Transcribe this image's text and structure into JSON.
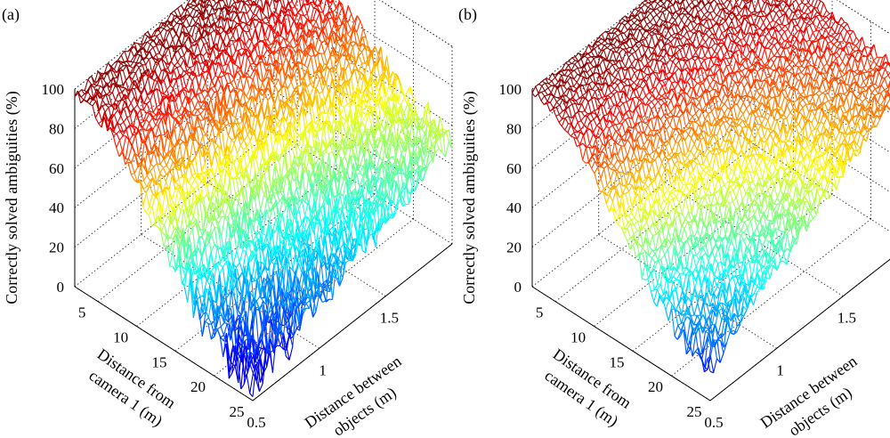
{
  "figure": {
    "panel_labels": [
      "(a)",
      "(b)"
    ]
  },
  "chart_data": [
    {
      "type": "surface",
      "panel": "(a)",
      "zlabel": "Correctly solved ambiguities (%)",
      "xlabel": "Distance from camera 1 (m)",
      "xlabel_lines": [
        "Distance from",
        "camera 1 (m)"
      ],
      "ylabel": "Distance between objects (m)",
      "ylabel_lines": [
        "Distance between",
        "objects (m)"
      ],
      "x_ticks": [
        "5",
        "10",
        "15",
        "20",
        "25"
      ],
      "y_ticks": [
        "0.5",
        "1",
        "1.5"
      ],
      "z_ticks": [
        "0",
        "20",
        "40",
        "60",
        "80",
        "100"
      ],
      "xlim": [
        2,
        25
      ],
      "ylim": [
        0.5,
        2.0
      ],
      "zlim": [
        0,
        100
      ],
      "colormap": "jet",
      "grid": true,
      "corner_values": {
        "near_camera_small_separation": 98,
        "near_camera_large_separation": 100,
        "far_camera_small_separation": 8,
        "far_camera_large_separation": 55
      },
      "noise_amplitude": 9
    },
    {
      "type": "surface",
      "panel": "(b)",
      "zlabel": "Correctly solved ambiguities (%)",
      "xlabel": "Distance from camera 1 (m)",
      "xlabel_lines": [
        "Distance from",
        "camera 1 (m)"
      ],
      "ylabel": "Distance between objects (m)",
      "ylabel_lines": [
        "Distance between",
        "objects (m)"
      ],
      "x_ticks": [
        "5",
        "10",
        "15",
        "20",
        "25"
      ],
      "y_ticks": [
        "0.5",
        "1",
        "1.5"
      ],
      "z_ticks": [
        "0",
        "20",
        "40",
        "60",
        "80",
        "100"
      ],
      "xlim": [
        2,
        25
      ],
      "ylim": [
        0.5,
        2.0
      ],
      "zlim": [
        0,
        100
      ],
      "colormap": "jet",
      "grid": true,
      "corner_values": {
        "near_camera_small_separation": 99,
        "near_camera_large_separation": 100,
        "far_camera_small_separation": 18,
        "far_camera_large_separation": 85
      },
      "noise_amplitude": 6
    }
  ]
}
